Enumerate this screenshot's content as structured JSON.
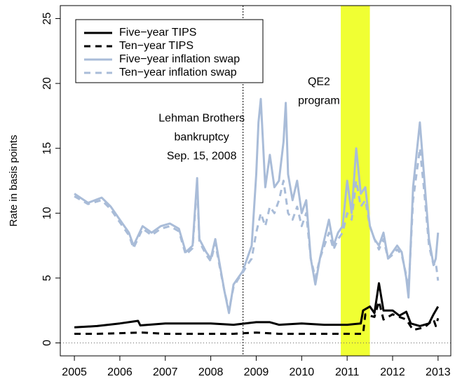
{
  "chart_data": {
    "type": "line",
    "y_label": "Rate in basis points",
    "xlim": [
      2004.69,
      2013.28
    ],
    "ylim": [
      -1.0,
      26
    ],
    "xticks": [
      2005,
      2006,
      2007,
      2008,
      2009,
      2010,
      2011,
      2012,
      2013
    ],
    "yticks": [
      0,
      5,
      10,
      15,
      20,
      25
    ],
    "legend_position": "top-left",
    "highlight_band": {
      "x": [
        2010.86,
        2011.5
      ],
      "color": "#f0ff33"
    },
    "event_line_x": 2008.71,
    "reference_line_y": 0,
    "annotations": [
      {
        "lines": [
          "Lehman Brothers",
          "bankruptcy",
          "Sep. 15, 2008"
        ],
        "x": 2007.8,
        "y": 17.3
      },
      {
        "lines": [
          "QE2",
          "program"
        ],
        "x": 2010.38,
        "y": 20.1
      }
    ],
    "series": [
      {
        "name": "Five−year TIPS",
        "color": "#000000",
        "dash": false,
        "x": [
          2005,
          2005.5,
          2006.0,
          2006.4,
          2006.45,
          2007.0,
          2007.5,
          2008.0,
          2008.5,
          2009.0,
          2009.3,
          2009.5,
          2010.0,
          2010.5,
          2011.0,
          2011.3,
          2011.35,
          2011.5,
          2011.6,
          2011.7,
          2011.8,
          2012.0,
          2012.15,
          2012.3,
          2012.4,
          2012.6,
          2012.8,
          2012.9,
          2013.0
        ],
        "values": [
          1.2,
          1.3,
          1.5,
          1.7,
          1.35,
          1.5,
          1.5,
          1.5,
          1.4,
          1.6,
          1.6,
          1.4,
          1.5,
          1.4,
          1.4,
          1.5,
          2.5,
          2.8,
          2.3,
          4.6,
          2.5,
          2.5,
          2.1,
          2.4,
          1.5,
          1.3,
          1.5,
          2.2,
          2.8
        ]
      },
      {
        "name": "Ten−year TIPS",
        "color": "#000000",
        "dash": true,
        "x": [
          2005,
          2005.5,
          2006.0,
          2006.5,
          2007.0,
          2007.5,
          2008.0,
          2008.5,
          2009.0,
          2009.5,
          2010.0,
          2010.5,
          2011.0,
          2011.35,
          2011.4,
          2011.6,
          2011.7,
          2011.8,
          2012.0,
          2012.3,
          2012.45,
          2012.7,
          2012.9,
          2012.95,
          2013.0
        ],
        "values": [
          0.7,
          0.7,
          0.75,
          0.8,
          0.7,
          0.7,
          0.7,
          0.7,
          0.8,
          0.7,
          0.7,
          0.7,
          0.7,
          0.7,
          2.2,
          2.0,
          3.2,
          1.8,
          2.2,
          1.8,
          1.0,
          1.2,
          1.8,
          1.3,
          1.9
        ]
      },
      {
        "name": "Five−year inflation swap",
        "color": "#a9bcd8",
        "dash": false,
        "x": [
          2005,
          2005.3,
          2005.6,
          2005.8,
          2006.0,
          2006.2,
          2006.3,
          2006.5,
          2006.7,
          2006.9,
          2007.1,
          2007.3,
          2007.45,
          2007.6,
          2007.7,
          2007.75,
          2007.9,
          2008.0,
          2008.1,
          2008.2,
          2008.3,
          2008.4,
          2008.5,
          2008.6,
          2008.7,
          2008.8,
          2008.9,
          2009.0,
          2009.05,
          2009.1,
          2009.2,
          2009.3,
          2009.4,
          2009.5,
          2009.6,
          2009.65,
          2009.7,
          2009.8,
          2009.9,
          2010.0,
          2010.1,
          2010.2,
          2010.3,
          2010.4,
          2010.5,
          2010.6,
          2010.7,
          2010.8,
          2010.9,
          2011.0,
          2011.1,
          2011.2,
          2011.3,
          2011.4,
          2011.5,
          2011.6,
          2011.7,
          2011.8,
          2011.9,
          2012.0,
          2012.1,
          2012.2,
          2012.3,
          2012.35,
          2012.45,
          2012.6,
          2012.7,
          2012.8,
          2012.9,
          2012.95,
          2013.0
        ],
        "values": [
          11.5,
          10.8,
          11.2,
          10.5,
          9.5,
          8.5,
          7.5,
          9.0,
          8.5,
          9.0,
          9.2,
          8.8,
          7.0,
          7.5,
          12.7,
          8.0,
          7.0,
          6.5,
          8.0,
          6.0,
          4.0,
          2.3,
          4.5,
          5.0,
          5.5,
          6.5,
          7.5,
          13.0,
          17.0,
          18.8,
          12.0,
          14.5,
          12.0,
          12.5,
          15.5,
          18.5,
          13.0,
          11.0,
          12.5,
          10.0,
          11.0,
          6.5,
          4.5,
          6.5,
          8.0,
          9.5,
          7.5,
          8.5,
          9.0,
          12.5,
          10.0,
          15.0,
          11.5,
          12.0,
          9.0,
          8.0,
          7.5,
          8.5,
          6.5,
          7.0,
          7.5,
          7.0,
          5.0,
          3.5,
          12.0,
          17.0,
          12.5,
          8.0,
          6.0,
          6.5,
          8.5
        ]
      },
      {
        "name": "Ten−year inflation swap",
        "color": "#a9bcd8",
        "dash": true,
        "x": [
          2005,
          2005.3,
          2005.6,
          2005.8,
          2006.0,
          2006.2,
          2006.3,
          2006.5,
          2006.7,
          2006.9,
          2007.1,
          2007.3,
          2007.45,
          2007.6,
          2007.7,
          2007.75,
          2007.9,
          2008.0,
          2008.1,
          2008.2,
          2008.3,
          2008.4,
          2008.5,
          2008.6,
          2008.7,
          2008.8,
          2008.9,
          2009.0,
          2009.1,
          2009.2,
          2009.3,
          2009.4,
          2009.5,
          2009.6,
          2009.7,
          2009.8,
          2009.9,
          2010.0,
          2010.1,
          2010.2,
          2010.3,
          2010.4,
          2010.5,
          2010.6,
          2010.7,
          2010.8,
          2010.9,
          2011.0,
          2011.1,
          2011.2,
          2011.3,
          2011.4,
          2011.5,
          2011.6,
          2011.7,
          2011.8,
          2011.9,
          2012.0,
          2012.1,
          2012.2,
          2012.3,
          2012.35,
          2012.45,
          2012.6,
          2012.7,
          2012.8,
          2012.9,
          2012.95,
          2013.0
        ],
        "values": [
          11.3,
          10.7,
          11.0,
          10.3,
          9.3,
          8.3,
          7.3,
          8.8,
          8.3,
          8.8,
          9.0,
          8.6,
          6.8,
          7.3,
          12.3,
          7.8,
          6.8,
          6.3,
          7.7,
          5.8,
          4.0,
          2.5,
          4.3,
          4.9,
          5.4,
          6.0,
          6.5,
          8.5,
          10.0,
          9.0,
          10.5,
          10.0,
          11.0,
          12.5,
          10.0,
          9.5,
          10.5,
          9.0,
          10.0,
          6.5,
          5.0,
          6.5,
          7.5,
          8.5,
          7.2,
          8.0,
          8.5,
          10.0,
          9.5,
          12.5,
          10.5,
          11.0,
          9.0,
          8.0,
          7.2,
          8.0,
          6.5,
          6.8,
          7.2,
          6.8,
          5.2,
          4.0,
          11.0,
          15.0,
          11.5,
          7.5,
          6.0,
          6.2,
          4.8
        ]
      }
    ]
  }
}
